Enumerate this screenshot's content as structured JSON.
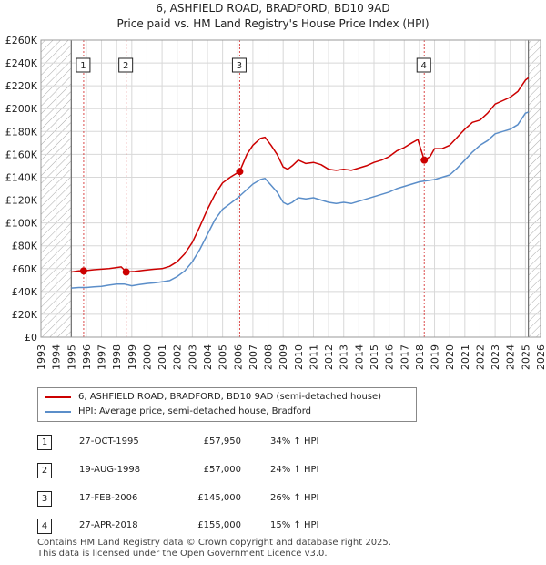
{
  "title": "6, ASHFIELD ROAD, BRADFORD, BD10 9AD",
  "subtitle": "Price paid vs. HM Land Registry's House Price Index (HPI)",
  "colors": {
    "property": "#cc0000",
    "hpi": "#5b8ec9",
    "shade": "#e6eaf0",
    "hatch": "#aaaaaa",
    "grid": "#d8d8d8"
  },
  "chart_data": {
    "type": "line",
    "title": "6, ASHFIELD ROAD, BRADFORD, BD10 9AD",
    "subtitle": "Price paid vs. HM Land Registry's House Price Index (HPI)",
    "xlabel": "",
    "ylabel": "",
    "xlim": [
      1993,
      2026
    ],
    "ylim": [
      0,
      260000
    ],
    "y_ticks": [
      0,
      20000,
      40000,
      60000,
      80000,
      100000,
      120000,
      140000,
      160000,
      180000,
      200000,
      220000,
      240000,
      260000
    ],
    "y_tick_labels": [
      "£0",
      "£20K",
      "£40K",
      "£60K",
      "£80K",
      "£100K",
      "£120K",
      "£140K",
      "£160K",
      "£180K",
      "£200K",
      "£220K",
      "£240K",
      "£260K"
    ],
    "x_ticks": [
      1993,
      1994,
      1995,
      1996,
      1997,
      1998,
      1999,
      2000,
      2001,
      2002,
      2003,
      2004,
      2005,
      2006,
      2007,
      2008,
      2009,
      2010,
      2011,
      2012,
      2013,
      2014,
      2015,
      2016,
      2017,
      2018,
      2019,
      2020,
      2021,
      2022,
      2023,
      2024,
      2025,
      2026
    ],
    "data_range": [
      1995.0,
      2025.2
    ],
    "series": [
      {
        "name": "6, ASHFIELD ROAD, BRADFORD, BD10 9AD (semi-detached house)",
        "x": [
          1995.0,
          1995.5,
          1995.82,
          1996.5,
          1997.5,
          1998.3,
          1998.63,
          1999.2,
          1999.8,
          2000.5,
          2001.0,
          2001.5,
          2002.0,
          2002.5,
          2003.0,
          2003.5,
          2004.0,
          2004.5,
          2005.0,
          2005.5,
          2006.13,
          2006.6,
          2007.0,
          2007.5,
          2007.8,
          2008.2,
          2008.6,
          2009.0,
          2009.3,
          2009.6,
          2010.0,
          2010.5,
          2011.0,
          2011.5,
          2012.0,
          2012.5,
          2013.0,
          2013.5,
          2014.0,
          2014.5,
          2015.0,
          2015.5,
          2016.0,
          2016.5,
          2017.0,
          2017.5,
          2017.9,
          2018.32,
          2018.7,
          2019.0,
          2019.5,
          2020.0,
          2020.5,
          2021.0,
          2021.5,
          2022.0,
          2022.5,
          2023.0,
          2023.5,
          2024.0,
          2024.5,
          2025.0,
          2025.2
        ],
        "y": [
          57000,
          58000,
          57950,
          59000,
          60000,
          61500,
          57000,
          57500,
          58500,
          59500,
          60000,
          62000,
          66000,
          73000,
          83000,
          97000,
          112000,
          125000,
          135000,
          140000,
          145000,
          160000,
          168000,
          174000,
          175000,
          168000,
          160000,
          149000,
          147000,
          150000,
          155000,
          152000,
          153000,
          151000,
          147000,
          146000,
          147000,
          146000,
          148000,
          150000,
          153000,
          155000,
          158000,
          163000,
          166000,
          170000,
          173000,
          155000,
          158000,
          165000,
          165000,
          168000,
          175000,
          182000,
          188000,
          190000,
          196000,
          204000,
          207000,
          210000,
          215000,
          225000,
          227000
        ]
      },
      {
        "name": "HPI: Average price, semi-detached house, Bradford",
        "x": [
          1995.0,
          1995.5,
          1996.0,
          1996.5,
          1997.0,
          1997.5,
          1998.0,
          1998.5,
          1999.0,
          1999.5,
          2000.0,
          2000.5,
          2001.0,
          2001.5,
          2002.0,
          2002.5,
          2003.0,
          2003.5,
          2004.0,
          2004.5,
          2005.0,
          2005.5,
          2006.0,
          2006.5,
          2007.0,
          2007.5,
          2007.8,
          2008.2,
          2008.6,
          2009.0,
          2009.3,
          2009.6,
          2010.0,
          2010.5,
          2011.0,
          2011.5,
          2012.0,
          2012.5,
          2013.0,
          2013.5,
          2014.0,
          2014.5,
          2015.0,
          2015.5,
          2016.0,
          2016.5,
          2017.0,
          2017.5,
          2018.0,
          2018.5,
          2019.0,
          2019.5,
          2020.0,
          2020.5,
          2021.0,
          2021.5,
          2022.0,
          2022.5,
          2023.0,
          2023.5,
          2024.0,
          2024.5,
          2025.0,
          2025.2
        ],
        "y": [
          43000,
          43500,
          43500,
          44000,
          44500,
          45500,
          46500,
          46500,
          45000,
          46000,
          47000,
          47500,
          48500,
          49500,
          53000,
          58000,
          66000,
          77000,
          90000,
          103000,
          112000,
          117000,
          122000,
          128000,
          134000,
          138000,
          139000,
          133000,
          127000,
          118000,
          116000,
          118000,
          122000,
          121000,
          122000,
          120000,
          118000,
          117000,
          118000,
          117000,
          119000,
          121000,
          123000,
          125000,
          127000,
          130000,
          132000,
          134000,
          136000,
          137000,
          138000,
          140000,
          142000,
          148000,
          155000,
          162000,
          168000,
          172000,
          178000,
          180000,
          182000,
          186000,
          196000,
          197000
        ]
      }
    ],
    "sales": [
      {
        "n": "1",
        "x": 1995.82,
        "price": 57950
      },
      {
        "n": "2",
        "x": 1998.63,
        "price": 57000
      },
      {
        "n": "3",
        "x": 2006.13,
        "price": 145000
      },
      {
        "n": "4",
        "x": 2018.32,
        "price": 155000
      }
    ]
  },
  "legend": {
    "property_label": "6, ASHFIELD ROAD, BRADFORD, BD10 9AD (semi-detached house)",
    "hpi_label": "HPI: Average price, semi-detached house, Bradford"
  },
  "transactions": [
    {
      "num": "1",
      "date": "27-OCT-1995",
      "price": "£57,950",
      "hpi": "34% ↑ HPI"
    },
    {
      "num": "2",
      "date": "19-AUG-1998",
      "price": "£57,000",
      "hpi": "24% ↑ HPI"
    },
    {
      "num": "3",
      "date": "17-FEB-2006",
      "price": "£145,000",
      "hpi": "26% ↑ HPI"
    },
    {
      "num": "4",
      "date": "27-APR-2018",
      "price": "£155,000",
      "hpi": "15% ↑ HPI"
    }
  ],
  "footer": {
    "line1": "Contains HM Land Registry data © Crown copyright and database right 2025.",
    "line2": "This data is licensed under the Open Government Licence v3.0."
  }
}
